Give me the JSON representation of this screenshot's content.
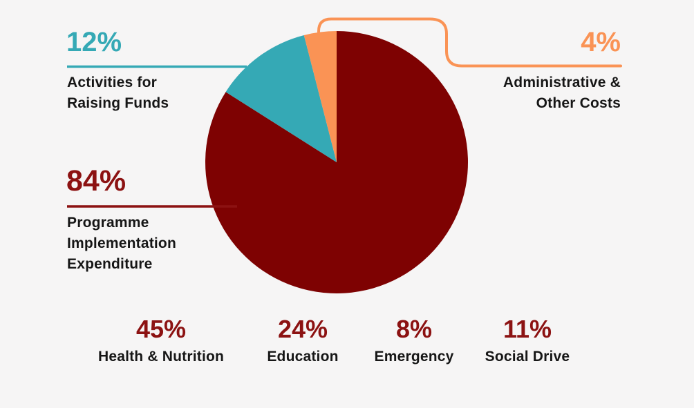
{
  "background_color": "#F6F5F5",
  "text_color": "#161616",
  "chart_data": {
    "type": "pie",
    "title": "",
    "direction": "clockwise",
    "start_angle_deg": 0,
    "legend_position": "callouts",
    "slices": [
      {
        "label": "Programme Implementation Expenditure",
        "name_lines": [
          "Programme",
          "Implementation",
          "Expenditure"
        ],
        "value": 84,
        "pct": "84%",
        "color": "#7E0202",
        "label_color": "#8C1212"
      },
      {
        "label": "Activities for Raising Funds",
        "name_lines": [
          "Activities for",
          "Raising Funds"
        ],
        "value": 12,
        "pct": "12%",
        "color": "#35A9B5",
        "label_color": "#35A9B5"
      },
      {
        "label": "Administrative & Other Costs",
        "name_lines": [
          "Administrative &",
          "Other Costs"
        ],
        "value": 4,
        "pct": "4%",
        "color": "#FA9355",
        "label_color": "#FA9355"
      }
    ],
    "breakdown_pct_color": "#8C1212",
    "breakdown": [
      {
        "pct": "45%",
        "value": 45,
        "label": "Health & Nutrition"
      },
      {
        "pct": "24%",
        "value": 24,
        "label": "Education"
      },
      {
        "pct": "8%",
        "value": 8,
        "label": "Emergency"
      },
      {
        "pct": "11%",
        "value": 11,
        "label": "Social Drive"
      }
    ]
  }
}
